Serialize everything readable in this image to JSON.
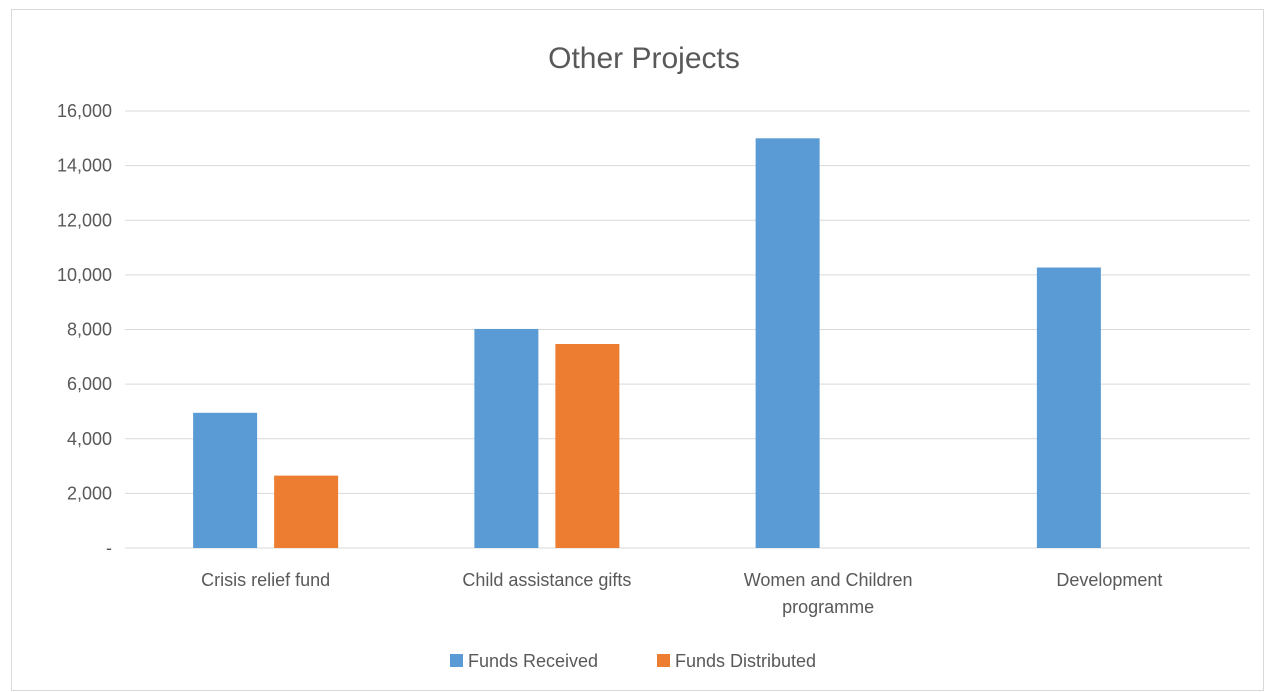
{
  "chart_data": {
    "type": "bar",
    "title": "Other Projects",
    "categories": [
      [
        "Crisis relief fund"
      ],
      [
        "Child assistance gifts"
      ],
      [
        "Women and Children",
        "programme"
      ],
      [
        "Development"
      ]
    ],
    "series": [
      {
        "name": "Funds Received",
        "color": "#5b9bd5",
        "values": [
          4950,
          8020,
          15000,
          10270
        ]
      },
      {
        "name": "Funds Distributed",
        "color": "#ed7d31",
        "values": [
          2650,
          7470,
          0,
          0
        ]
      }
    ],
    "ylim": [
      0,
      16000
    ],
    "yticks": [
      0,
      2000,
      4000,
      6000,
      8000,
      10000,
      12000,
      14000,
      16000
    ],
    "ytick_labels": [
      "-",
      "2,000",
      "4,000",
      "6,000",
      "8,000",
      "10,000",
      "12,000",
      "14,000",
      "16,000"
    ],
    "grid": true,
    "legend_position": "bottom"
  }
}
